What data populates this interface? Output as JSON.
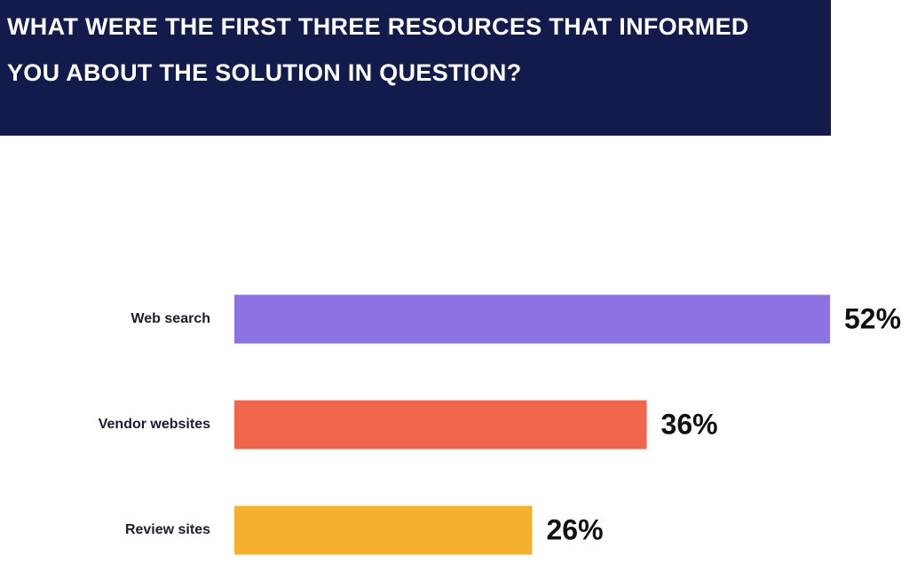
{
  "chart_data": {
    "type": "bar",
    "orientation": "horizontal",
    "title": "WHAT WERE THE FIRST THREE RESOURCES THAT INFORMED YOU ABOUT THE SOLUTION IN QUESTION?",
    "categories": [
      "Web search",
      "Vendor websites",
      "Review sites"
    ],
    "values": [
      52,
      36,
      26
    ],
    "value_labels": [
      "52%",
      "36%",
      "26%"
    ],
    "colors": [
      "#8c72e3",
      "#f0654b",
      "#f5b02e"
    ]
  }
}
